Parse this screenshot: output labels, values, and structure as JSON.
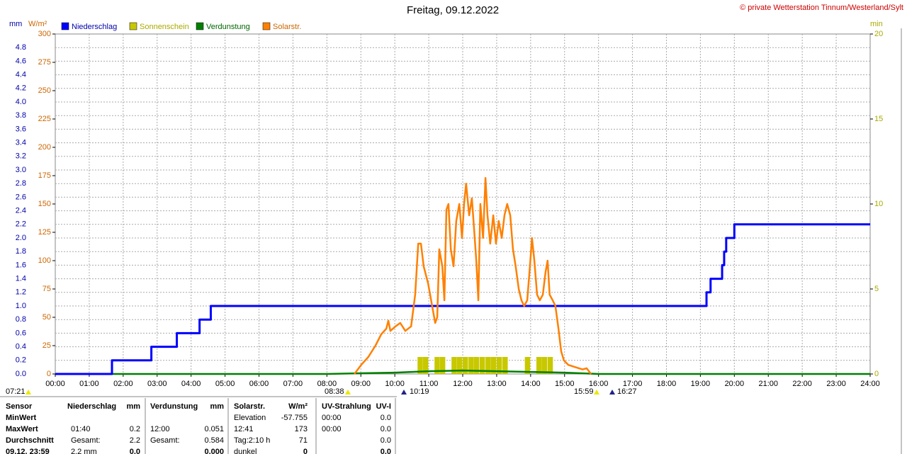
{
  "chart_data": {
    "type": "combo",
    "title": "Freitag, 09.12.2022",
    "copyright": "© private Wetterstation Tinnum/Westerland/Sylt",
    "ylabel": "W/m²",
    "y2label": "min",
    "y3label": "mm",
    "xlim": [
      0,
      24
    ],
    "xticks": [
      {
        "value": 0,
        "label": "00:00"
      },
      {
        "value": 1,
        "label": "01:00"
      },
      {
        "value": 2,
        "label": "02:00"
      },
      {
        "value": 3,
        "label": "03:00"
      },
      {
        "value": 4,
        "label": "04:00"
      },
      {
        "value": 5,
        "label": "05:00"
      },
      {
        "value": 6,
        "label": "06:00"
      },
      {
        "value": 7,
        "label": "07:00"
      },
      {
        "value": 8,
        "label": "08:00"
      },
      {
        "value": 9,
        "label": "09:00"
      },
      {
        "value": 10,
        "label": "10:00"
      },
      {
        "value": 11,
        "label": "11:00"
      },
      {
        "value": 12,
        "label": "12:00"
      },
      {
        "value": 13,
        "label": "13:00"
      },
      {
        "value": 14,
        "label": "14:00"
      },
      {
        "value": 15,
        "label": "15:00"
      },
      {
        "value": 16,
        "label": "16:00"
      },
      {
        "value": 17,
        "label": "17:00"
      },
      {
        "value": 18,
        "label": "18:00"
      },
      {
        "value": 19,
        "label": "19:00"
      },
      {
        "value": 20,
        "label": "20:00"
      },
      {
        "value": 21,
        "label": "21:00"
      },
      {
        "value": 22,
        "label": "22:00"
      },
      {
        "value": 23,
        "label": "23:00"
      },
      {
        "value": 24,
        "label": "24:00"
      }
    ],
    "ylim": [
      0,
      300
    ],
    "yticks": [
      0,
      25,
      50,
      75,
      100,
      125,
      150,
      175,
      200,
      225,
      250,
      275,
      300
    ],
    "y2lim": [
      0,
      20
    ],
    "y2ticks": [
      0,
      5,
      10,
      15,
      20
    ],
    "y3lim": [
      0,
      5
    ],
    "y3ticks": [
      {
        "value": 0,
        "label": "0.0"
      },
      0.2,
      0.4,
      0.6,
      0.8,
      {
        "value": 1,
        "label": "1.0"
      },
      1.2,
      1.4,
      1.6,
      1.8,
      {
        "value": 2,
        "label": "2.0"
      },
      2.2,
      2.4,
      2.6,
      2.8,
      {
        "value": 3,
        "label": "3.0"
      },
      3.2,
      3.4,
      3.6,
      3.8,
      {
        "value": 4,
        "label": "4.0"
      },
      4.2,
      4.4,
      4.6,
      4.8
    ],
    "grid": true,
    "series": [
      {
        "name": "Niederschlag",
        "color": "#0000ff",
        "axis": "y3",
        "kind": "step",
        "x": [
          0,
          1.67,
          2.83,
          3.58,
          4.25,
          4.58,
          19.18,
          19.3,
          19.64,
          19.7,
          19.76,
          20.0,
          24
        ],
        "values": [
          0,
          0.2,
          0.4,
          0.6,
          0.8,
          1.0,
          1.2,
          1.4,
          1.6,
          1.8,
          2.0,
          2.2,
          2.2
        ]
      },
      {
        "name": "Sonnenschein",
        "color": "#c8c800",
        "axis": "y2",
        "kind": "bar",
        "x": [
          10.67,
          10.83,
          11.17,
          11.33,
          11.67,
          11.83,
          12.0,
          12.17,
          12.33,
          12.5,
          12.67,
          12.83,
          13.0,
          13.17,
          13.83,
          14.17,
          14.33,
          14.5
        ],
        "values": [
          1,
          1,
          1,
          1,
          1,
          1,
          1,
          1,
          1,
          1,
          1,
          1,
          1,
          1,
          1,
          1,
          1,
          1
        ]
      },
      {
        "name": "Verdunstung",
        "color": "#008000",
        "axis": "y3",
        "kind": "line",
        "x": [
          0,
          8,
          9,
          10,
          11,
          12,
          13,
          14,
          15,
          16,
          24
        ],
        "values": [
          0,
          0,
          0.01,
          0.02,
          0.04,
          0.051,
          0.04,
          0.03,
          0.02,
          0,
          0
        ]
      },
      {
        "name": "Solarstr.",
        "color": "#ff8000",
        "axis": "y",
        "kind": "line",
        "x": [
          8.81,
          9.01,
          9.22,
          9.43,
          9.6,
          9.75,
          9.81,
          9.87,
          10.02,
          10.16,
          10.31,
          10.48,
          10.6,
          10.69,
          10.77,
          10.85,
          10.98,
          11.1,
          11.19,
          11.25,
          11.31,
          11.4,
          11.46,
          11.52,
          11.58,
          11.65,
          11.73,
          11.81,
          11.9,
          11.98,
          12.04,
          12.1,
          12.19,
          12.27,
          12.33,
          12.4,
          12.46,
          12.52,
          12.6,
          12.67,
          12.73,
          12.81,
          12.9,
          12.98,
          13.06,
          13.15,
          13.23,
          13.31,
          13.4,
          13.48,
          13.56,
          13.65,
          13.73,
          13.81,
          13.9,
          13.98,
          14.04,
          14.11,
          14.19,
          14.27,
          14.36,
          14.44,
          14.5,
          14.56,
          14.65,
          14.73,
          14.82,
          14.9,
          14.98,
          15.11,
          15.32,
          15.53,
          15.65,
          15.78
        ],
        "values": [
          0,
          8,
          15,
          25,
          35,
          40,
          47,
          38,
          42,
          45,
          38,
          42,
          70,
          115,
          115,
          95,
          80,
          60,
          45,
          50,
          110,
          95,
          65,
          145,
          150,
          110,
          95,
          135,
          150,
          120,
          150,
          168,
          140,
          155,
          130,
          100,
          65,
          150,
          120,
          173,
          140,
          115,
          140,
          115,
          135,
          120,
          140,
          150,
          140,
          110,
          95,
          75,
          65,
          60,
          65,
          95,
          120,
          100,
          70,
          65,
          70,
          90,
          100,
          70,
          65,
          60,
          40,
          20,
          12,
          8,
          6,
          4,
          5,
          0
        ]
      }
    ],
    "annotations": [
      "07:21",
      "08:38",
      "10:19",
      "15:59",
      "16:27"
    ]
  },
  "table": {
    "rows": [
      [
        "Sensor",
        "Niederschlag",
        "mm",
        "Verdunstung",
        "mm",
        "Solarstr.",
        "W/m²",
        "UV-Strahlung",
        "UV-I"
      ],
      [
        "MinWert",
        null,
        null,
        null,
        null,
        "Elevation",
        "-57.755",
        "00:00",
        "0.0"
      ],
      [
        "MaxWert",
        "01:40",
        "0.2",
        "12:00",
        "0.051",
        "12:41",
        "173",
        "00:00",
        "0.0"
      ],
      [
        "Durchschnitt",
        "Gesamt:",
        "2.2",
        "Gesamt:",
        "0.584",
        "Tag:2:10 h",
        "71",
        null,
        "0.0"
      ],
      [
        "09.12. 23:59",
        "2.2 mm",
        "0.0",
        null,
        "0.000",
        "dunkel",
        "0",
        null,
        "0.0"
      ]
    ]
  }
}
